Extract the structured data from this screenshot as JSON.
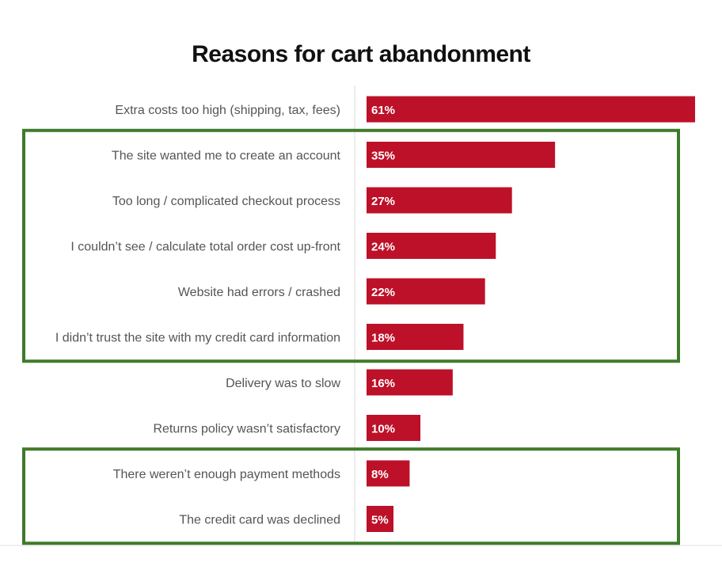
{
  "chart_data": {
    "type": "bar",
    "orientation": "horizontal",
    "title": "Reasons for cart abandonment",
    "categories": [
      "Extra costs too high (shipping, tax, fees)",
      "The site wanted me to create an account",
      "Too long / complicated checkout process",
      "I couldn’t see / calculate total order cost up-front",
      "Website had errors / crashed",
      "I didn’t trust the site with my credit card information",
      "Delivery was to slow",
      "Returns policy wasn’t satisfactory",
      "There weren’t enough payment methods",
      "The credit card was declined"
    ],
    "values": [
      61,
      35,
      27,
      24,
      22,
      18,
      16,
      10,
      8,
      5
    ],
    "value_labels": [
      "61%",
      "35%",
      "27%",
      "24%",
      "22%",
      "18%",
      "16%",
      "10%",
      "8%",
      "5%"
    ],
    "unit": "%",
    "xlim": [
      0,
      61
    ],
    "grid": false,
    "legend": "none",
    "bar_color": "#bd1129",
    "highlight_groups": [
      {
        "from_category_index": 1,
        "to_category_index": 5,
        "color": "#3f7a2a"
      },
      {
        "from_category_index": 8,
        "to_category_index": 9,
        "color": "#3f7a2a"
      }
    ]
  }
}
